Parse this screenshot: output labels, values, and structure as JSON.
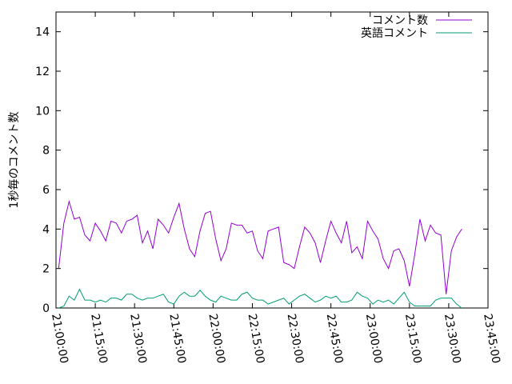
{
  "chart_data": {
    "type": "line",
    "y_label": "1秒毎のコメント数",
    "x": [
      "21:01:00",
      "21:03:00",
      "21:05:00",
      "21:07:00",
      "21:09:00",
      "21:11:00",
      "21:13:00",
      "21:15:00",
      "21:17:00",
      "21:19:00",
      "21:21:00",
      "21:23:00",
      "21:25:00",
      "21:27:00",
      "21:29:00",
      "21:31:00",
      "21:33:00",
      "21:35:00",
      "21:37:00",
      "21:39:00",
      "21:41:00",
      "21:43:00",
      "21:45:00",
      "21:47:00",
      "21:49:00",
      "21:51:00",
      "21:53:00",
      "21:55:00",
      "21:57:00",
      "21:59:00",
      "22:01:00",
      "22:03:00",
      "22:05:00",
      "22:07:00",
      "22:09:00",
      "22:11:00",
      "22:13:00",
      "22:15:00",
      "22:17:00",
      "22:19:00",
      "22:21:00",
      "22:23:00",
      "22:25:00",
      "22:27:00",
      "22:29:00",
      "22:31:00",
      "22:33:00",
      "22:35:00",
      "22:37:00",
      "22:39:00",
      "22:41:00",
      "22:43:00",
      "22:45:00",
      "22:47:00",
      "22:49:00",
      "22:51:00",
      "22:53:00",
      "22:55:00",
      "22:57:00",
      "22:59:00",
      "23:01:00",
      "23:03:00",
      "23:05:00",
      "23:07:00",
      "23:09:00",
      "23:11:00",
      "23:13:00",
      "23:15:00",
      "23:17:00",
      "23:19:00",
      "23:21:00",
      "23:23:00",
      "23:25:00",
      "23:27:00",
      "23:29:00",
      "23:31:00",
      "23:33:00",
      "23:35:00"
    ],
    "series": [
      {
        "name": "コメント数",
        "color": "#9400d3",
        "values": [
          2.0,
          4.3,
          5.4,
          4.5,
          4.6,
          3.7,
          3.4,
          4.3,
          3.9,
          3.4,
          4.4,
          4.3,
          3.8,
          4.4,
          4.5,
          4.7,
          3.3,
          3.9,
          3.0,
          4.5,
          4.2,
          3.8,
          4.6,
          5.3,
          4.0,
          3.0,
          2.6,
          3.9,
          4.8,
          4.9,
          3.5,
          2.4,
          3.0,
          4.3,
          4.2,
          4.2,
          3.8,
          3.9,
          2.9,
          2.5,
          3.9,
          4.0,
          4.1,
          2.3,
          2.2,
          2.0,
          3.1,
          4.1,
          3.8,
          3.3,
          2.3,
          3.4,
          4.4,
          3.8,
          3.3,
          4.4,
          2.8,
          3.1,
          2.5,
          4.4,
          3.9,
          3.5,
          2.5,
          2.0,
          2.9,
          3.0,
          2.4,
          1.1,
          2.7,
          4.5,
          3.4,
          4.2,
          3.8,
          3.7,
          0.7,
          2.9,
          3.6,
          4.0
        ]
      },
      {
        "name": "英語コメント",
        "color": "#009e73",
        "values": [
          0,
          0.1,
          0.6,
          0.4,
          0.95,
          0.4,
          0.4,
          0.3,
          0.4,
          0.3,
          0.5,
          0.5,
          0.4,
          0.7,
          0.7,
          0.5,
          0.4,
          0.5,
          0.5,
          0.6,
          0.7,
          0.3,
          0.2,
          0.6,
          0.8,
          0.6,
          0.6,
          0.9,
          0.6,
          0.4,
          0.3,
          0.6,
          0.5,
          0.4,
          0.4,
          0.7,
          0.8,
          0.5,
          0.4,
          0.4,
          0.2,
          0.3,
          0.4,
          0.5,
          0.2,
          0.4,
          0.6,
          0.7,
          0.5,
          0.3,
          0.4,
          0.6,
          0.5,
          0.6,
          0.3,
          0.3,
          0.4,
          0.8,
          0.6,
          0.5,
          0.2,
          0.4,
          0.3,
          0.4,
          0.2,
          0.5,
          0.8,
          0.3,
          0.1,
          0.1,
          0.1,
          0.1,
          0.4,
          0.5,
          0.5,
          0.5,
          0.2,
          0.0
        ]
      }
    ],
    "xlim": [
      "21:00:00",
      "23:45:00"
    ],
    "xticks": [
      "21:00:00",
      "21:15:00",
      "21:30:00",
      "21:45:00",
      "22:00:00",
      "22:15:00",
      "22:30:00",
      "22:45:00",
      "23:00:00",
      "23:15:00",
      "23:30:00",
      "23:45:00"
    ],
    "ylim": [
      0,
      15
    ],
    "yticks": [
      0,
      2,
      4,
      6,
      8,
      10,
      12,
      14
    ],
    "legend": "top-right"
  }
}
